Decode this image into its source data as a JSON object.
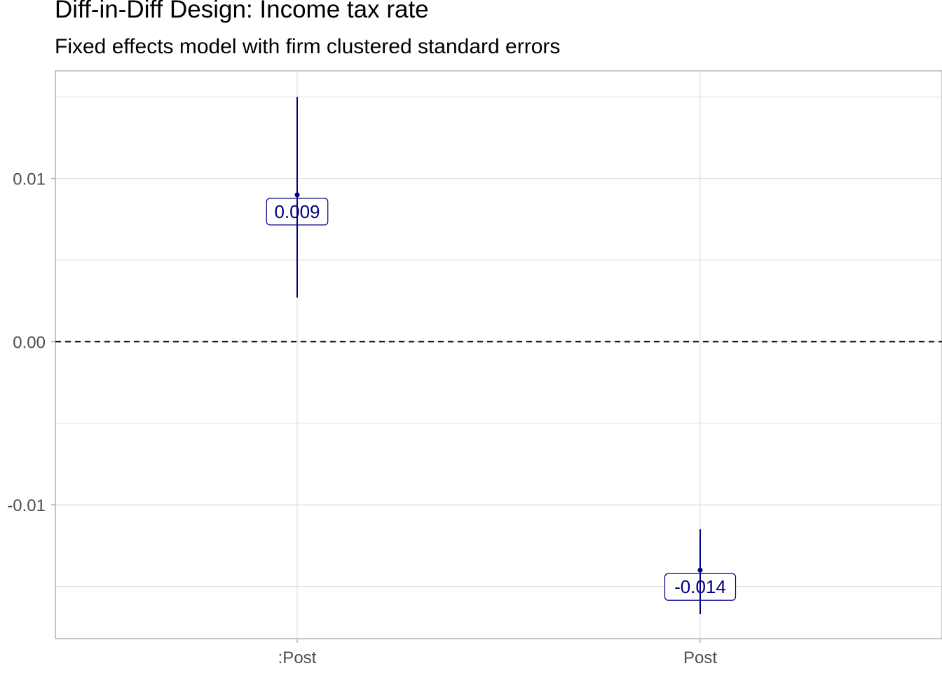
{
  "chart_data": {
    "type": "errorbar",
    "title": "Diff-in-Diff Design: Income tax rate",
    "subtitle": "Fixed effects model with firm clustered standard errors",
    "xlabel": "",
    "ylabel": "",
    "categories": [
      ":Post",
      "Post"
    ],
    "points": [
      {
        "category": ":Post",
        "estimate": 0.009,
        "lower": 0.0027,
        "upper": 0.015,
        "label": "0.009"
      },
      {
        "category": "Post",
        "estimate": -0.014,
        "lower": -0.0167,
        "upper": -0.0115,
        "label": "-0.014"
      }
    ],
    "ylim": [
      -0.0182,
      0.0166
    ],
    "yticks": [
      {
        "value": -0.01,
        "label": "-0.01"
      },
      {
        "value": 0.0,
        "label": "0.00"
      },
      {
        "value": 0.01,
        "label": "0.01"
      }
    ],
    "reference_line": {
      "value": 0,
      "style": "dashed"
    },
    "grid": true,
    "colors": {
      "series": "#000080",
      "grid": "#e0e0e0",
      "axis": "#b3b3b3",
      "reference": "#000000"
    }
  }
}
